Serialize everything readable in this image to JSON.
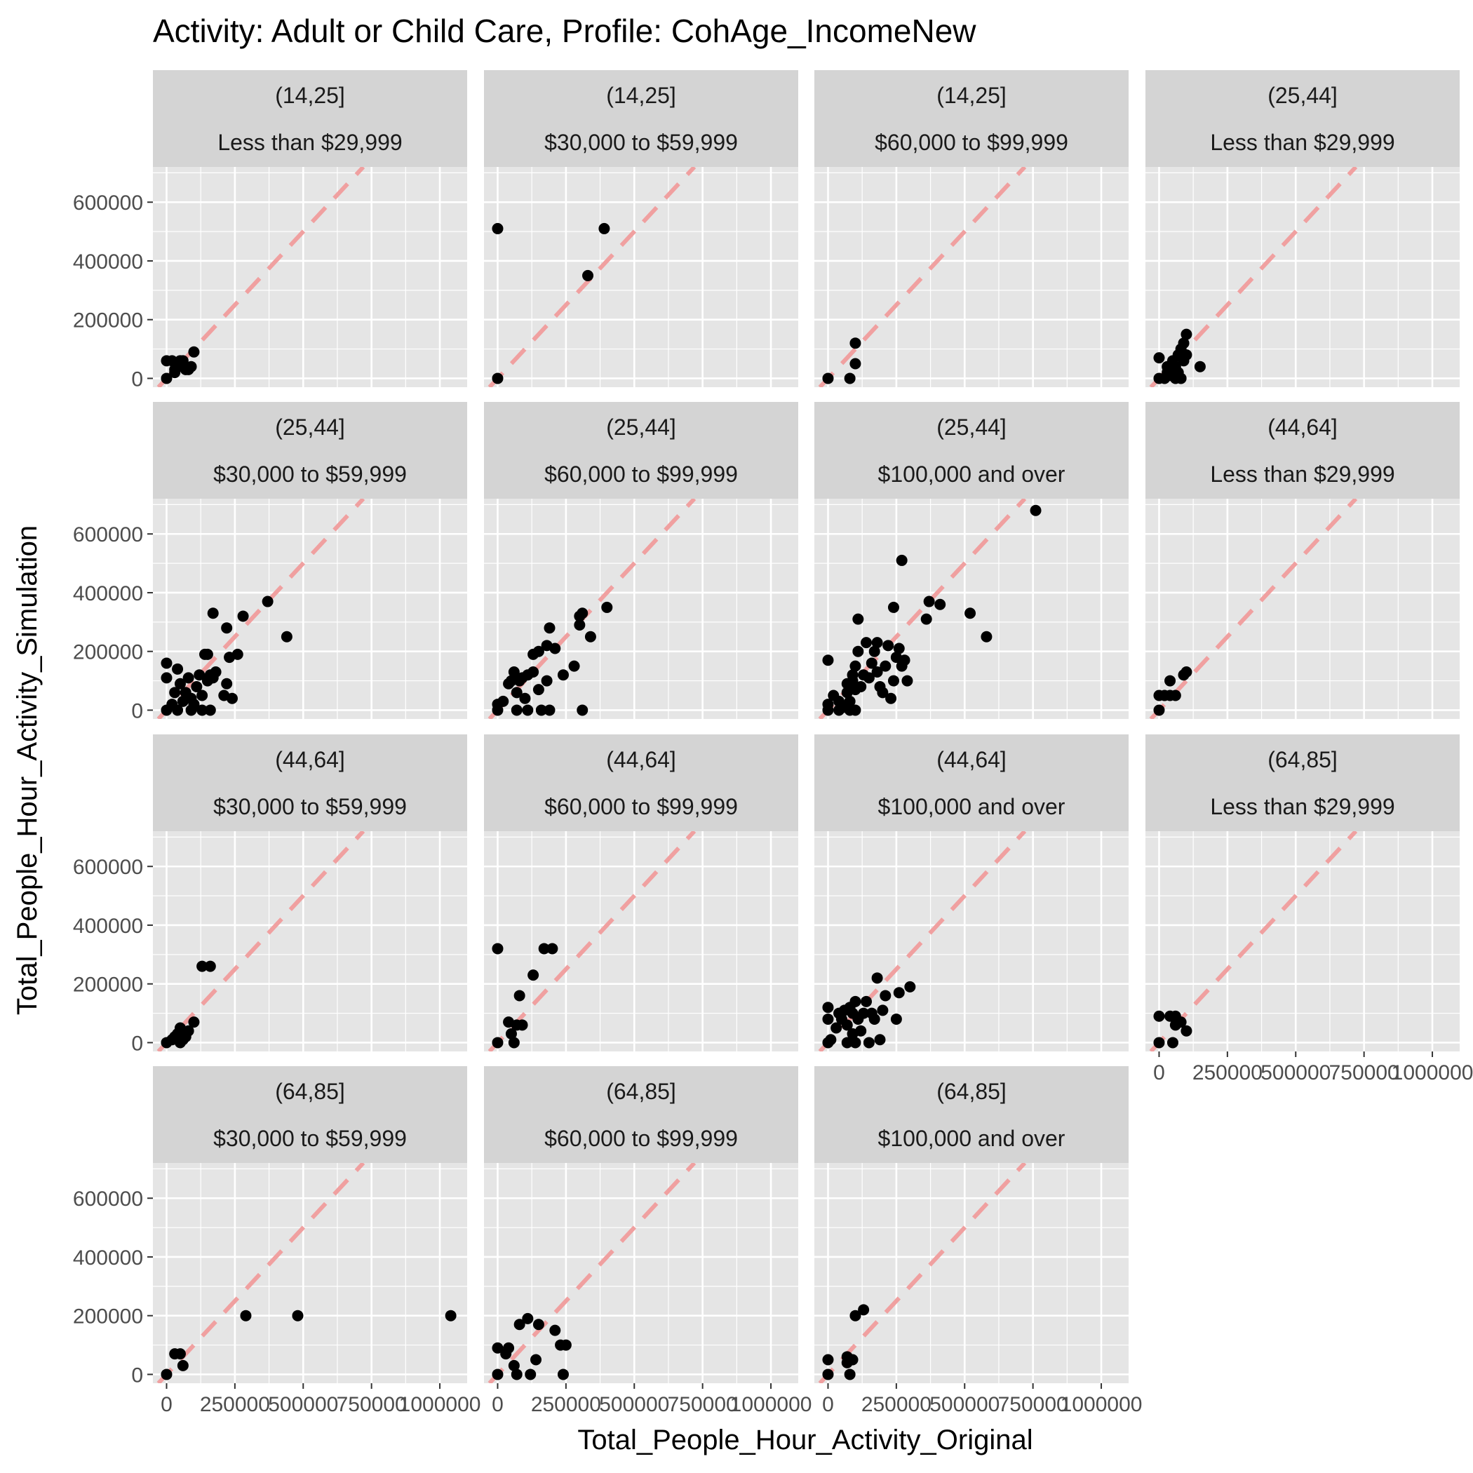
{
  "chart_data": {
    "type": "scatter",
    "title": "Activity: Adult or Child Care, Profile: CohAge_IncomeNew",
    "xlabel": "Total_People_Hour_Activity_Original",
    "ylabel": "Total_People_Hour_Activity_Simulation",
    "xlim": [
      -50000,
      1100000
    ],
    "ylim": [
      -30000,
      720000
    ],
    "x_ticks": [
      0,
      250000,
      500000,
      750000,
      1000000
    ],
    "x_tick_labels": [
      "0",
      "250000",
      "500000",
      "750000",
      "1000000"
    ],
    "y_ticks": [
      0,
      200000,
      400000,
      600000
    ],
    "y_tick_labels": [
      "0",
      "200000",
      "400000",
      "600000"
    ],
    "reference_line": {
      "type": "identity",
      "style": "dashed",
      "color": "#f0a0a0"
    },
    "grid": true,
    "colors": {
      "panel_bg": "#e5e5e5",
      "strip_bg": "#d4d4d4",
      "point": "#000000",
      "grid": "#ffffff"
    },
    "facets": [
      {
        "age": "(14,25]",
        "income": "Less than $29,999",
        "points": [
          [
            0,
            0
          ],
          [
            0,
            60000
          ],
          [
            20000,
            60000
          ],
          [
            30000,
            30000
          ],
          [
            40000,
            50000
          ],
          [
            50000,
            60000
          ],
          [
            60000,
            40000
          ],
          [
            70000,
            30000
          ],
          [
            80000,
            30000
          ],
          [
            90000,
            40000
          ],
          [
            100000,
            90000
          ],
          [
            30000,
            20000
          ],
          [
            60000,
            60000
          ]
        ]
      },
      {
        "age": "(14,25]",
        "income": "$30,000 to $59,999",
        "points": [
          [
            0,
            0
          ],
          [
            0,
            510000
          ],
          [
            330000,
            350000
          ],
          [
            390000,
            510000
          ]
        ]
      },
      {
        "age": "(14,25]",
        "income": "$60,000 to $99,999",
        "points": [
          [
            0,
            0
          ],
          [
            80000,
            0
          ],
          [
            100000,
            120000
          ],
          [
            100000,
            50000
          ]
        ]
      },
      {
        "age": "(25,44]",
        "income": "Less than $29,999",
        "points": [
          [
            0,
            0
          ],
          [
            0,
            70000
          ],
          [
            20000,
            0
          ],
          [
            30000,
            20000
          ],
          [
            30000,
            40000
          ],
          [
            40000,
            10000
          ],
          [
            50000,
            60000
          ],
          [
            50000,
            30000
          ],
          [
            60000,
            0
          ],
          [
            60000,
            40000
          ],
          [
            70000,
            80000
          ],
          [
            70000,
            20000
          ],
          [
            80000,
            0
          ],
          [
            80000,
            100000
          ],
          [
            90000,
            120000
          ],
          [
            90000,
            60000
          ],
          [
            100000,
            150000
          ],
          [
            100000,
            80000
          ],
          [
            150000,
            40000
          ]
        ]
      },
      {
        "age": "(25,44]",
        "income": "$30,000 to $59,999",
        "points": [
          [
            0,
            0
          ],
          [
            0,
            160000
          ],
          [
            0,
            110000
          ],
          [
            20000,
            20000
          ],
          [
            30000,
            60000
          ],
          [
            40000,
            0
          ],
          [
            40000,
            140000
          ],
          [
            50000,
            90000
          ],
          [
            60000,
            30000
          ],
          [
            70000,
            60000
          ],
          [
            80000,
            110000
          ],
          [
            90000,
            0
          ],
          [
            90000,
            40000
          ],
          [
            100000,
            20000
          ],
          [
            110000,
            80000
          ],
          [
            120000,
            120000
          ],
          [
            130000,
            0
          ],
          [
            130000,
            50000
          ],
          [
            140000,
            190000
          ],
          [
            150000,
            100000
          ],
          [
            150000,
            190000
          ],
          [
            160000,
            0
          ],
          [
            160000,
            120000
          ],
          [
            170000,
            330000
          ],
          [
            170000,
            110000
          ],
          [
            180000,
            130000
          ],
          [
            210000,
            50000
          ],
          [
            220000,
            90000
          ],
          [
            220000,
            280000
          ],
          [
            230000,
            180000
          ],
          [
            240000,
            40000
          ],
          [
            260000,
            190000
          ],
          [
            280000,
            320000
          ],
          [
            370000,
            370000
          ],
          [
            440000,
            250000
          ]
        ]
      },
      {
        "age": "(25,44]",
        "income": "$60,000 to $99,999",
        "points": [
          [
            0,
            0
          ],
          [
            0,
            20000
          ],
          [
            20000,
            30000
          ],
          [
            40000,
            90000
          ],
          [
            50000,
            100000
          ],
          [
            60000,
            130000
          ],
          [
            70000,
            0
          ],
          [
            70000,
            60000
          ],
          [
            80000,
            100000
          ],
          [
            90000,
            110000
          ],
          [
            100000,
            40000
          ],
          [
            110000,
            0
          ],
          [
            110000,
            120000
          ],
          [
            130000,
            130000
          ],
          [
            130000,
            190000
          ],
          [
            150000,
            70000
          ],
          [
            150000,
            200000
          ],
          [
            160000,
            0
          ],
          [
            180000,
            100000
          ],
          [
            180000,
            220000
          ],
          [
            190000,
            0
          ],
          [
            190000,
            280000
          ],
          [
            210000,
            210000
          ],
          [
            240000,
            120000
          ],
          [
            280000,
            150000
          ],
          [
            300000,
            290000
          ],
          [
            300000,
            320000
          ],
          [
            310000,
            330000
          ],
          [
            310000,
            0
          ],
          [
            340000,
            250000
          ],
          [
            400000,
            350000
          ]
        ]
      },
      {
        "age": "(25,44]",
        "income": "$100,000 and over",
        "points": [
          [
            0,
            0
          ],
          [
            0,
            20000
          ],
          [
            0,
            170000
          ],
          [
            20000,
            50000
          ],
          [
            40000,
            0
          ],
          [
            40000,
            30000
          ],
          [
            60000,
            10000
          ],
          [
            70000,
            60000
          ],
          [
            70000,
            90000
          ],
          [
            80000,
            0
          ],
          [
            80000,
            30000
          ],
          [
            90000,
            100000
          ],
          [
            90000,
            120000
          ],
          [
            100000,
            0
          ],
          [
            100000,
            70000
          ],
          [
            100000,
            150000
          ],
          [
            110000,
            310000
          ],
          [
            110000,
            200000
          ],
          [
            120000,
            80000
          ],
          [
            130000,
            120000
          ],
          [
            140000,
            230000
          ],
          [
            150000,
            110000
          ],
          [
            160000,
            160000
          ],
          [
            170000,
            200000
          ],
          [
            180000,
            130000
          ],
          [
            180000,
            230000
          ],
          [
            190000,
            80000
          ],
          [
            200000,
            60000
          ],
          [
            210000,
            150000
          ],
          [
            220000,
            220000
          ],
          [
            230000,
            40000
          ],
          [
            240000,
            100000
          ],
          [
            240000,
            350000
          ],
          [
            250000,
            180000
          ],
          [
            260000,
            210000
          ],
          [
            270000,
            510000
          ],
          [
            270000,
            150000
          ],
          [
            280000,
            170000
          ],
          [
            290000,
            100000
          ],
          [
            360000,
            310000
          ],
          [
            370000,
            370000
          ],
          [
            410000,
            360000
          ],
          [
            520000,
            330000
          ],
          [
            580000,
            250000
          ],
          [
            760000,
            680000
          ]
        ]
      },
      {
        "age": "(44,64]",
        "income": "Less than $29,999",
        "points": [
          [
            0,
            0
          ],
          [
            0,
            50000
          ],
          [
            20000,
            50000
          ],
          [
            40000,
            50000
          ],
          [
            40000,
            100000
          ],
          [
            60000,
            50000
          ],
          [
            90000,
            120000
          ],
          [
            100000,
            130000
          ]
        ]
      },
      {
        "age": "(44,64]",
        "income": "$30,000 to $59,999",
        "points": [
          [
            0,
            0
          ],
          [
            20000,
            10000
          ],
          [
            30000,
            20000
          ],
          [
            40000,
            30000
          ],
          [
            50000,
            0
          ],
          [
            50000,
            50000
          ],
          [
            60000,
            10000
          ],
          [
            70000,
            20000
          ],
          [
            80000,
            40000
          ],
          [
            100000,
            70000
          ],
          [
            130000,
            260000
          ],
          [
            160000,
            260000
          ]
        ]
      },
      {
        "age": "(44,64]",
        "income": "$60,000 to $99,999",
        "points": [
          [
            0,
            0
          ],
          [
            0,
            320000
          ],
          [
            40000,
            70000
          ],
          [
            50000,
            30000
          ],
          [
            60000,
            0
          ],
          [
            70000,
            60000
          ],
          [
            80000,
            160000
          ],
          [
            90000,
            60000
          ],
          [
            130000,
            230000
          ],
          [
            170000,
            320000
          ],
          [
            200000,
            320000
          ]
        ]
      },
      {
        "age": "(44,64]",
        "income": "$100,000 and over",
        "points": [
          [
            0,
            0
          ],
          [
            0,
            80000
          ],
          [
            0,
            120000
          ],
          [
            10000,
            10000
          ],
          [
            30000,
            50000
          ],
          [
            40000,
            100000
          ],
          [
            50000,
            80000
          ],
          [
            60000,
            110000
          ],
          [
            70000,
            0
          ],
          [
            70000,
            60000
          ],
          [
            80000,
            120000
          ],
          [
            90000,
            30000
          ],
          [
            90000,
            100000
          ],
          [
            100000,
            0
          ],
          [
            100000,
            140000
          ],
          [
            110000,
            80000
          ],
          [
            120000,
            40000
          ],
          [
            130000,
            100000
          ],
          [
            140000,
            140000
          ],
          [
            150000,
            0
          ],
          [
            160000,
            100000
          ],
          [
            170000,
            80000
          ],
          [
            180000,
            220000
          ],
          [
            190000,
            10000
          ],
          [
            200000,
            110000
          ],
          [
            210000,
            160000
          ],
          [
            250000,
            80000
          ],
          [
            260000,
            170000
          ],
          [
            300000,
            190000
          ]
        ]
      },
      {
        "age": "(64,85]",
        "income": "Less than $29,999",
        "points": [
          [
            0,
            0
          ],
          [
            0,
            90000
          ],
          [
            40000,
            90000
          ],
          [
            50000,
            0
          ],
          [
            60000,
            60000
          ],
          [
            60000,
            90000
          ],
          [
            80000,
            70000
          ],
          [
            100000,
            40000
          ]
        ]
      },
      {
        "age": "(64,85]",
        "income": "$30,000 to $59,999",
        "points": [
          [
            0,
            0
          ],
          [
            30000,
            70000
          ],
          [
            50000,
            70000
          ],
          [
            60000,
            30000
          ],
          [
            290000,
            200000
          ],
          [
            480000,
            200000
          ],
          [
            1040000,
            200000
          ]
        ]
      },
      {
        "age": "(64,85]",
        "income": "$60,000 to $99,999",
        "points": [
          [
            0,
            0
          ],
          [
            0,
            90000
          ],
          [
            30000,
            70000
          ],
          [
            40000,
            90000
          ],
          [
            60000,
            30000
          ],
          [
            70000,
            0
          ],
          [
            80000,
            170000
          ],
          [
            110000,
            190000
          ],
          [
            120000,
            0
          ],
          [
            140000,
            50000
          ],
          [
            150000,
            170000
          ],
          [
            210000,
            150000
          ],
          [
            230000,
            100000
          ],
          [
            240000,
            0
          ],
          [
            250000,
            100000
          ]
        ]
      },
      {
        "age": "(64,85]",
        "income": "$100,000 and over",
        "points": [
          [
            0,
            0
          ],
          [
            0,
            50000
          ],
          [
            70000,
            40000
          ],
          [
            70000,
            60000
          ],
          [
            80000,
            0
          ],
          [
            90000,
            50000
          ],
          [
            100000,
            200000
          ],
          [
            130000,
            220000
          ]
        ]
      }
    ]
  }
}
